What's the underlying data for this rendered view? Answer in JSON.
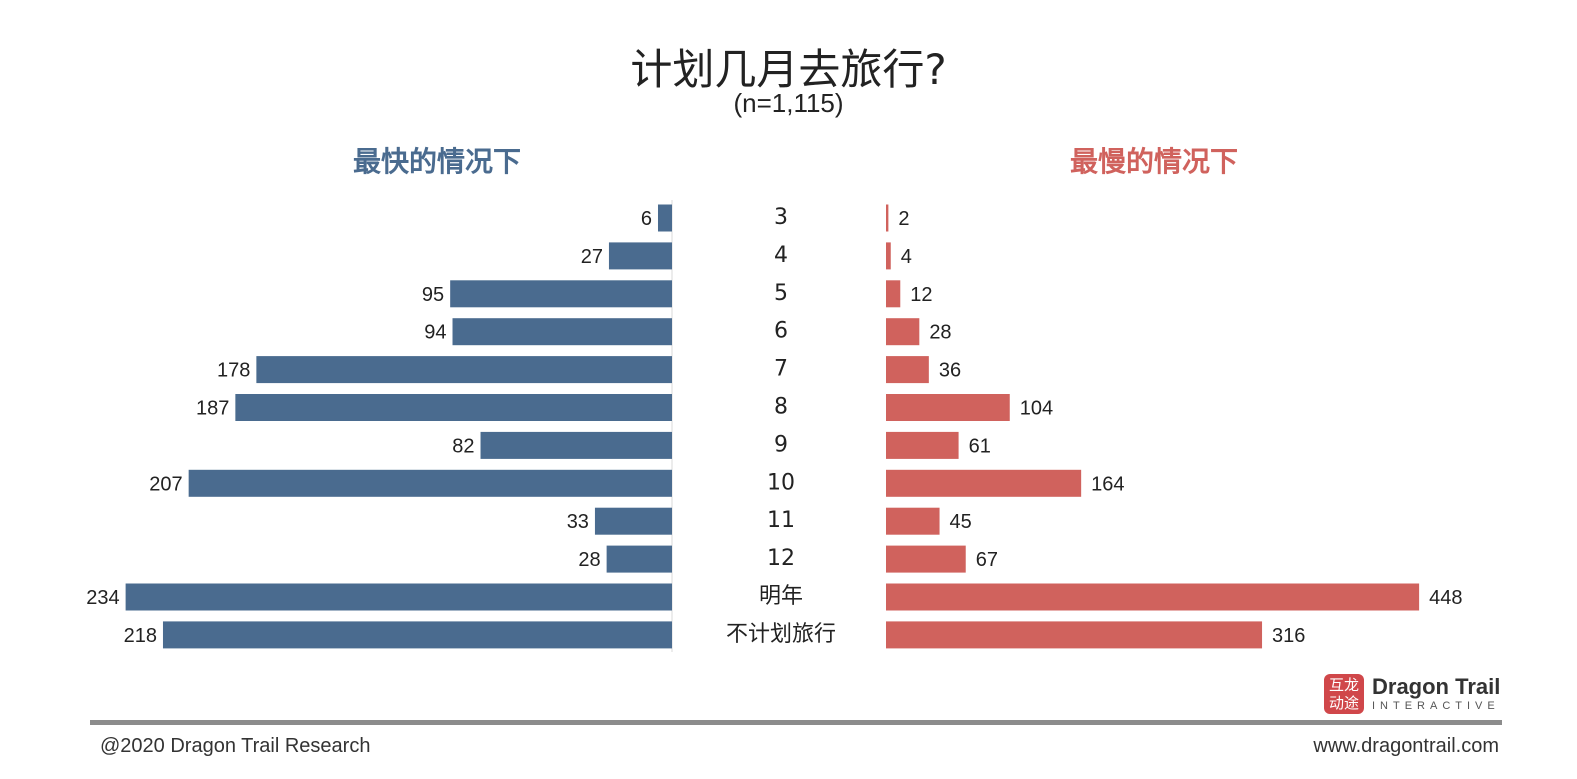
{
  "chart_data": {
    "type": "bar",
    "title": "计划几月去旅行?",
    "subtitle": "(n=1,115)",
    "categories": [
      "3",
      "4",
      "5",
      "6",
      "7",
      "8",
      "9",
      "10",
      "11",
      "12",
      "明年",
      "不计划旅行"
    ],
    "series": [
      {
        "name": "最快的情况下",
        "values": [
          6,
          27,
          95,
          94,
          178,
          187,
          82,
          207,
          33,
          28,
          234,
          218
        ],
        "color": "#4a6b8f"
      },
      {
        "name": "最慢的情况下",
        "values": [
          2,
          4,
          12,
          28,
          36,
          104,
          61,
          164,
          45,
          67,
          448,
          316
        ],
        "color": "#d0625d"
      }
    ],
    "legend": "top-left and top-right headings",
    "grid": false
  },
  "footer": {
    "copyright": "@2020 Dragon Trail Research",
    "website": "www.dragontrail.com"
  },
  "logo": {
    "mark_line1": "互龙",
    "mark_line2": "动途",
    "name": "Dragon Trail",
    "sub": "INTERACTIVE"
  }
}
